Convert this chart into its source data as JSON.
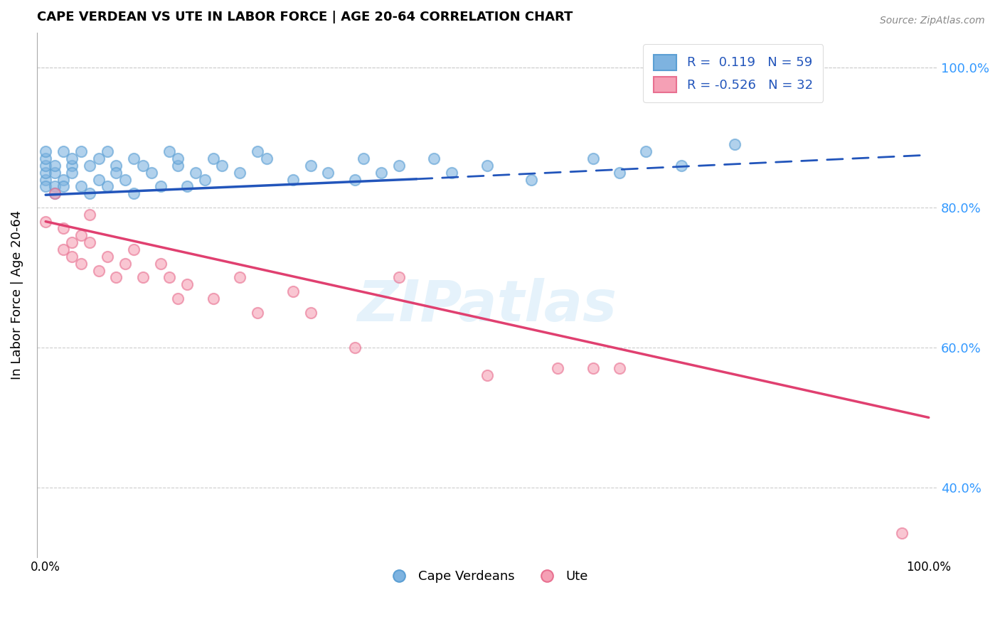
{
  "title": "CAPE VERDEAN VS UTE IN LABOR FORCE | AGE 20-64 CORRELATION CHART",
  "source": "Source: ZipAtlas.com",
  "ylabel": "In Labor Force | Age 20-64",
  "blue_color": "#7EB3E0",
  "blue_edge_color": "#5B9FD4",
  "pink_color": "#F5A0B5",
  "pink_edge_color": "#E87090",
  "blue_line_color": "#2255BB",
  "pink_line_color": "#E04070",
  "R_blue": 0.119,
  "N_blue": 59,
  "R_pink": -0.526,
  "N_pink": 32,
  "ytick_vals": [
    0.4,
    0.6,
    0.8,
    1.0
  ],
  "ytick_labels": [
    "40.0%",
    "60.0%",
    "80.0%",
    "100.0%"
  ],
  "blue_line_solid_end": 0.42,
  "blue_line_y_start": 0.818,
  "blue_line_y_mid": 0.845,
  "blue_line_y_end": 0.875,
  "pink_line_y_start": 0.78,
  "pink_line_y_end": 0.5,
  "xmin": -0.01,
  "xmax": 1.01,
  "ymin": 0.3,
  "ymax": 1.05,
  "blue_x": [
    0.0,
    0.0,
    0.0,
    0.0,
    0.0,
    0.0,
    0.01,
    0.01,
    0.01,
    0.01,
    0.02,
    0.02,
    0.02,
    0.03,
    0.03,
    0.03,
    0.04,
    0.04,
    0.05,
    0.05,
    0.06,
    0.06,
    0.07,
    0.07,
    0.08,
    0.08,
    0.09,
    0.1,
    0.1,
    0.11,
    0.12,
    0.13,
    0.14,
    0.15,
    0.15,
    0.16,
    0.17,
    0.18,
    0.19,
    0.2,
    0.22,
    0.24,
    0.25,
    0.28,
    0.3,
    0.32,
    0.35,
    0.36,
    0.38,
    0.4,
    0.44,
    0.46,
    0.5,
    0.55,
    0.62,
    0.65,
    0.68,
    0.72,
    0.78
  ],
  "blue_y": [
    0.84,
    0.85,
    0.83,
    0.86,
    0.87,
    0.88,
    0.83,
    0.85,
    0.86,
    0.82,
    0.84,
    0.88,
    0.83,
    0.86,
    0.85,
    0.87,
    0.83,
    0.88,
    0.82,
    0.86,
    0.87,
    0.84,
    0.83,
    0.88,
    0.86,
    0.85,
    0.84,
    0.82,
    0.87,
    0.86,
    0.85,
    0.83,
    0.88,
    0.86,
    0.87,
    0.83,
    0.85,
    0.84,
    0.87,
    0.86,
    0.85,
    0.88,
    0.87,
    0.84,
    0.86,
    0.85,
    0.84,
    0.87,
    0.85,
    0.86,
    0.87,
    0.85,
    0.86,
    0.84,
    0.87,
    0.85,
    0.88,
    0.86,
    0.89
  ],
  "pink_x": [
    0.0,
    0.01,
    0.02,
    0.02,
    0.03,
    0.03,
    0.04,
    0.04,
    0.05,
    0.05,
    0.06,
    0.07,
    0.08,
    0.09,
    0.1,
    0.11,
    0.13,
    0.14,
    0.15,
    0.16,
    0.19,
    0.22,
    0.24,
    0.28,
    0.3,
    0.35,
    0.4,
    0.5,
    0.58,
    0.62,
    0.65,
    0.97
  ],
  "pink_y": [
    0.78,
    0.82,
    0.74,
    0.77,
    0.75,
    0.73,
    0.72,
    0.76,
    0.79,
    0.75,
    0.71,
    0.73,
    0.7,
    0.72,
    0.74,
    0.7,
    0.72,
    0.7,
    0.67,
    0.69,
    0.67,
    0.7,
    0.65,
    0.68,
    0.65,
    0.6,
    0.7,
    0.56,
    0.57,
    0.57,
    0.57,
    0.335
  ]
}
